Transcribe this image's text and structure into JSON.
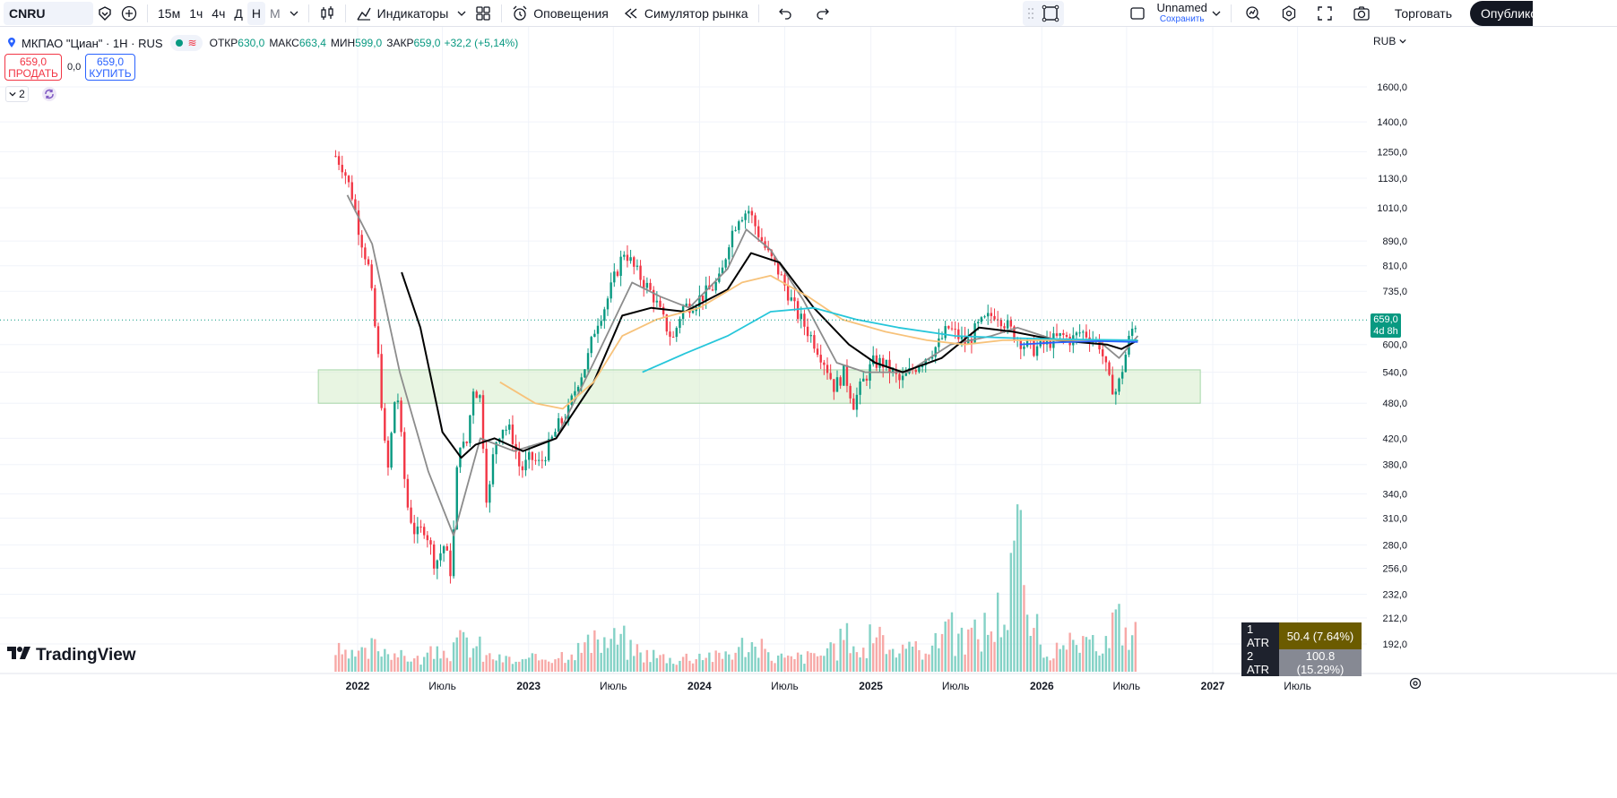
{
  "toolbar": {
    "symbol": "CNRU",
    "intervals": [
      "15м",
      "1ч",
      "4ч",
      "Д",
      "Н",
      "М"
    ],
    "active_interval": "Н",
    "indicators_label": "Индикаторы",
    "alerts_label": "Оповещения",
    "replay_label": "Симулятор рынка",
    "layout_name": "Unnamed",
    "layout_save": "Сохранить",
    "trade_label": "Торговать",
    "publish_label": "Опубликовать",
    "icons": [
      "plus-circle-icon",
      "candles-icon",
      "indicators-icon",
      "layout-grid-icon",
      "alarm-clock-icon",
      "rewind-icon",
      "undo-icon",
      "redo-icon",
      "rectangle-icon",
      "search-chart-icon",
      "settings-icon",
      "fullscreen-icon",
      "camera-icon"
    ]
  },
  "legend": {
    "title": "МКПАО \"Циан\" · 1Н · RUS",
    "open_label": "ОТКР",
    "open": "630,0",
    "high_label": "МАКС",
    "high": "663,4",
    "low_label": "МИН",
    "low": "599,0",
    "close_label": "ЗАКР",
    "close": "659,0",
    "change": "+32,2 (+5,14%)"
  },
  "order": {
    "sell_price": "659,0",
    "sell_label": "ПРОДАТЬ",
    "buy_price": "659,0",
    "buy_label": "КУПИТЬ",
    "spread": "0,0"
  },
  "indicators_collapsed": "2",
  "currency": "RUB",
  "last_price_tag": {
    "price": "659,0",
    "countdown": "4d 8h"
  },
  "atr_table": [
    {
      "key": "1 ATR",
      "value": "50.4 (7.64%)"
    },
    {
      "key": "2 ATR",
      "value": "100.8 (15.29%)"
    }
  ],
  "brand": "TradingView",
  "colors": {
    "up": "#089981",
    "down": "#f23645",
    "ma_fast": "#8c8c8c",
    "ma_mid": "#000000",
    "ma_slow": "#f7c27a",
    "ma_long": "#26c6da",
    "ma_extra": "#2962ff",
    "zone": "#d8efcf"
  },
  "chart_data": {
    "type": "candlestick",
    "symbol": "МКПАО \"Циан\"",
    "timeframe": "1Н",
    "y_scale": "log",
    "y_ticks": [
      "1600,0",
      "1400,0",
      "1250,0",
      "1130,0",
      "1010,0",
      "890,0",
      "810,0",
      "735,0",
      "600,0",
      "540,0",
      "480,0",
      "420,0",
      "380,0",
      "340,0",
      "310,0",
      "280,0",
      "256,0",
      "232,0",
      "212,0",
      "192,0"
    ],
    "y_tick_values": [
      1600,
      1400,
      1250,
      1130,
      1010,
      890,
      810,
      735,
      600,
      540,
      480,
      420,
      380,
      340,
      310,
      280,
      256,
      232,
      212,
      192
    ],
    "x_ticks": [
      "2022",
      "Июль",
      "2023",
      "Июль",
      "2024",
      "Июль",
      "2025",
      "Июль",
      "2026",
      "Июль",
      "2027",
      "Июль"
    ],
    "x_tick_dates": [
      "2022-01-01",
      "2022-07-01",
      "2023-01-01",
      "2023-07-01",
      "2024-01-01",
      "2024-07-01",
      "2025-01-01",
      "2025-07-01",
      "2026-01-01",
      "2026-07-01",
      "2027-01-01",
      "2027-07-01"
    ],
    "last_price": 659,
    "support_zone": {
      "from": "2021-11-01",
      "to": "2026-11-01",
      "low": 480,
      "high": 545
    },
    "price_path": [
      [
        "2021-11-15",
        1230
      ],
      [
        "2021-12-01",
        1180
      ],
      [
        "2021-12-20",
        1060
      ],
      [
        "2022-01-05",
        920
      ],
      [
        "2022-01-25",
        800
      ],
      [
        "2022-02-15",
        560
      ],
      [
        "2022-03-05",
        360
      ],
      [
        "2022-03-25",
        520
      ],
      [
        "2022-04-15",
        330
      ],
      [
        "2022-05-05",
        290
      ],
      [
        "2022-05-25",
        300
      ],
      [
        "2022-06-15",
        260
      ],
      [
        "2022-07-05",
        280
      ],
      [
        "2022-07-20",
        250
      ],
      [
        "2022-08-05",
        420
      ],
      [
        "2022-08-20",
        400
      ],
      [
        "2022-09-05",
        510
      ],
      [
        "2022-09-20",
        490
      ],
      [
        "2022-10-05",
        320
      ],
      [
        "2022-10-20",
        410
      ],
      [
        "2022-11-05",
        440
      ],
      [
        "2022-11-25",
        430
      ],
      [
        "2022-12-15",
        370
      ],
      [
        "2023-01-05",
        390
      ],
      [
        "2023-01-25",
        380
      ],
      [
        "2023-02-15",
        410
      ],
      [
        "2023-03-05",
        440
      ],
      [
        "2023-03-25",
        460
      ],
      [
        "2023-04-15",
        520
      ],
      [
        "2023-05-05",
        560
      ],
      [
        "2023-05-25",
        650
      ],
      [
        "2023-06-15",
        700
      ],
      [
        "2023-07-05",
        780
      ],
      [
        "2023-07-25",
        860
      ],
      [
        "2023-08-15",
        800
      ],
      [
        "2023-09-05",
        760
      ],
      [
        "2023-09-25",
        720
      ],
      [
        "2023-10-15",
        660
      ],
      [
        "2023-11-05",
        610
      ],
      [
        "2023-11-25",
        690
      ],
      [
        "2023-12-15",
        700
      ],
      [
        "2024-01-05",
        720
      ],
      [
        "2024-01-25",
        740
      ],
      [
        "2024-02-15",
        770
      ],
      [
        "2024-03-05",
        900
      ],
      [
        "2024-03-25",
        980
      ],
      [
        "2024-04-15",
        1000
      ],
      [
        "2024-05-05",
        920
      ],
      [
        "2024-05-25",
        850
      ],
      [
        "2024-06-15",
        800
      ],
      [
        "2024-07-05",
        740
      ],
      [
        "2024-07-25",
        680
      ],
      [
        "2024-08-15",
        640
      ],
      [
        "2024-09-05",
        600
      ],
      [
        "2024-09-25",
        560
      ],
      [
        "2024-10-15",
        510
      ],
      [
        "2024-11-05",
        540
      ],
      [
        "2024-11-25",
        480
      ],
      [
        "2024-12-15",
        520
      ],
      [
        "2025-01-05",
        560
      ],
      [
        "2025-01-25",
        560
      ],
      [
        "2025-02-15",
        540
      ],
      [
        "2025-03-05",
        520
      ],
      [
        "2025-03-25",
        540
      ],
      [
        "2025-04-15",
        560
      ],
      [
        "2025-05-05",
        580
      ],
      [
        "2025-05-25",
        600
      ],
      [
        "2025-06-15",
        640
      ],
      [
        "2025-07-05",
        620
      ],
      [
        "2025-07-25",
        600
      ],
      [
        "2025-08-15",
        640
      ],
      [
        "2025-09-05",
        660
      ],
      [
        "2025-09-25",
        680
      ],
      [
        "2025-10-15",
        650
      ],
      [
        "2025-11-05",
        620
      ],
      [
        "2025-11-25",
        600
      ],
      [
        "2025-12-15",
        590
      ],
      [
        "2026-01-05",
        600
      ],
      [
        "2026-01-25",
        610
      ],
      [
        "2026-02-15",
        620
      ],
      [
        "2026-03-05",
        610
      ],
      [
        "2026-03-25",
        630
      ],
      [
        "2026-04-15",
        620
      ],
      [
        "2026-05-05",
        600
      ],
      [
        "2026-05-25",
        520
      ],
      [
        "2026-06-10",
        500
      ],
      [
        "2026-06-25",
        560
      ],
      [
        "2026-07-10",
        630
      ],
      [
        "2026-07-25",
        659
      ]
    ],
    "moving_averages": [
      {
        "color": "#8c8c8c",
        "points": [
          [
            "2021-12-10",
            1060
          ],
          [
            "2022-02-01",
            880
          ],
          [
            "2022-04-01",
            540
          ],
          [
            "2022-06-01",
            370
          ],
          [
            "2022-07-25",
            290
          ],
          [
            "2022-09-20",
            420
          ],
          [
            "2022-12-01",
            400
          ],
          [
            "2023-03-01",
            420
          ],
          [
            "2023-05-20",
            560
          ],
          [
            "2023-08-10",
            760
          ],
          [
            "2023-10-10",
            720
          ],
          [
            "2023-12-10",
            690
          ],
          [
            "2024-03-01",
            800
          ],
          [
            "2024-04-10",
            930
          ],
          [
            "2024-06-01",
            860
          ],
          [
            "2024-08-10",
            710
          ],
          [
            "2024-10-20",
            560
          ],
          [
            "2024-12-20",
            540
          ],
          [
            "2025-03-20",
            540
          ],
          [
            "2025-06-20",
            600
          ],
          [
            "2025-09-15",
            620
          ],
          [
            "2025-11-10",
            640
          ],
          [
            "2026-02-01",
            610
          ],
          [
            "2026-05-01",
            610
          ],
          [
            "2026-06-15",
            570
          ],
          [
            "2026-07-25",
            620
          ]
        ]
      },
      {
        "color": "#000000",
        "points": [
          [
            "2022-04-05",
            790
          ],
          [
            "2022-05-15",
            640
          ],
          [
            "2022-07-01",
            430
          ],
          [
            "2022-08-10",
            390
          ],
          [
            "2022-09-10",
            410
          ],
          [
            "2022-10-20",
            420
          ],
          [
            "2022-12-20",
            400
          ],
          [
            "2023-03-01",
            420
          ],
          [
            "2023-05-20",
            520
          ],
          [
            "2023-07-20",
            670
          ],
          [
            "2023-09-20",
            690
          ],
          [
            "2023-12-01",
            680
          ],
          [
            "2024-03-01",
            740
          ],
          [
            "2024-04-20",
            850
          ],
          [
            "2024-06-20",
            820
          ],
          [
            "2024-09-01",
            690
          ],
          [
            "2024-11-15",
            600
          ],
          [
            "2025-01-10",
            560
          ],
          [
            "2025-03-10",
            540
          ],
          [
            "2025-06-01",
            570
          ],
          [
            "2025-08-20",
            640
          ],
          [
            "2025-11-01",
            630
          ],
          [
            "2026-02-01",
            610
          ],
          [
            "2026-05-20",
            600
          ],
          [
            "2026-06-20",
            590
          ],
          [
            "2026-07-25",
            610
          ]
        ]
      },
      {
        "color": "#f7c27a",
        "points": [
          [
            "2022-11-01",
            520
          ],
          [
            "2023-01-15",
            480
          ],
          [
            "2023-03-15",
            470
          ],
          [
            "2023-05-20",
            520
          ],
          [
            "2023-07-20",
            620
          ],
          [
            "2023-10-01",
            660
          ],
          [
            "2024-01-01",
            690
          ],
          [
            "2024-04-01",
            760
          ],
          [
            "2024-06-01",
            780
          ],
          [
            "2024-08-20",
            720
          ],
          [
            "2024-11-01",
            660
          ],
          [
            "2025-02-01",
            630
          ],
          [
            "2025-05-01",
            610
          ],
          [
            "2025-07-20",
            600
          ],
          [
            "2025-10-10",
            610
          ],
          [
            "2026-02-01",
            610
          ],
          [
            "2026-07-25",
            610
          ]
        ]
      },
      {
        "color": "#26c6da",
        "points": [
          [
            "2023-09-01",
            540
          ],
          [
            "2023-12-01",
            580
          ],
          [
            "2024-03-01",
            620
          ],
          [
            "2024-06-01",
            680
          ],
          [
            "2024-09-01",
            690
          ],
          [
            "2024-12-01",
            660
          ],
          [
            "2025-03-01",
            640
          ],
          [
            "2025-07-01",
            620
          ],
          [
            "2025-11-01",
            615
          ],
          [
            "2026-03-01",
            612
          ],
          [
            "2026-07-25",
            610
          ]
        ]
      },
      {
        "color": "#2962ff",
        "points": [
          [
            "2025-11-15",
            600
          ],
          [
            "2026-02-01",
            605
          ],
          [
            "2026-05-01",
            608
          ],
          [
            "2026-07-25",
            606
          ]
        ]
      }
    ],
    "volume": [
      [
        "2021-11-15",
        0.4
      ],
      [
        "2021-12-15",
        0.3
      ],
      [
        "2022-01-15",
        0.35
      ],
      [
        "2022-02-15",
        0.5
      ],
      [
        "2022-03-15",
        0.45
      ],
      [
        "2022-04-15",
        0.3
      ],
      [
        "2022-05-15",
        0.25
      ],
      [
        "2022-06-15",
        0.35
      ],
      [
        "2022-07-15",
        0.4
      ],
      [
        "2022-08-15",
        0.6
      ],
      [
        "2022-09-15",
        0.5
      ],
      [
        "2022-10-15",
        0.3
      ],
      [
        "2022-11-15",
        0.25
      ],
      [
        "2022-12-15",
        0.2
      ],
      [
        "2023-01-15",
        0.25
      ],
      [
        "2023-02-15",
        0.3
      ],
      [
        "2023-03-15",
        0.35
      ],
      [
        "2023-04-15",
        0.45
      ],
      [
        "2023-05-15",
        0.55
      ],
      [
        "2023-06-15",
        0.6
      ],
      [
        "2023-07-15",
        0.65
      ],
      [
        "2023-08-15",
        0.45
      ],
      [
        "2023-09-15",
        0.35
      ],
      [
        "2023-10-15",
        0.3
      ],
      [
        "2023-11-15",
        0.25
      ],
      [
        "2023-12-15",
        0.3
      ],
      [
        "2024-01-15",
        0.35
      ],
      [
        "2024-02-15",
        0.3
      ],
      [
        "2024-03-15",
        0.4
      ],
      [
        "2024-04-15",
        0.55
      ],
      [
        "2024-05-15",
        0.45
      ],
      [
        "2024-06-15",
        0.3
      ],
      [
        "2024-07-15",
        0.25
      ],
      [
        "2024-08-15",
        0.3
      ],
      [
        "2024-09-15",
        0.35
      ],
      [
        "2024-10-15",
        0.4
      ],
      [
        "2024-11-15",
        0.7
      ],
      [
        "2024-12-15",
        0.4
      ],
      [
        "2025-01-15",
        0.85
      ],
      [
        "2025-02-15",
        0.5
      ],
      [
        "2025-03-15",
        0.4
      ],
      [
        "2025-04-15",
        0.45
      ],
      [
        "2025-05-15",
        0.55
      ],
      [
        "2025-06-15",
        1.1
      ],
      [
        "2025-07-15",
        0.6
      ],
      [
        "2025-08-15",
        0.75
      ],
      [
        "2025-09-15",
        0.9
      ],
      [
        "2025-10-15",
        1.2
      ],
      [
        "2025-11-15",
        2.6
      ],
      [
        "2025-12-15",
        0.8
      ],
      [
        "2026-01-15",
        0.45
      ],
      [
        "2026-02-15",
        0.4
      ],
      [
        "2026-03-15",
        0.55
      ],
      [
        "2026-04-15",
        0.5
      ],
      [
        "2026-05-15",
        0.6
      ],
      [
        "2026-06-15",
        1.0
      ],
      [
        "2026-07-15",
        0.75
      ]
    ]
  }
}
